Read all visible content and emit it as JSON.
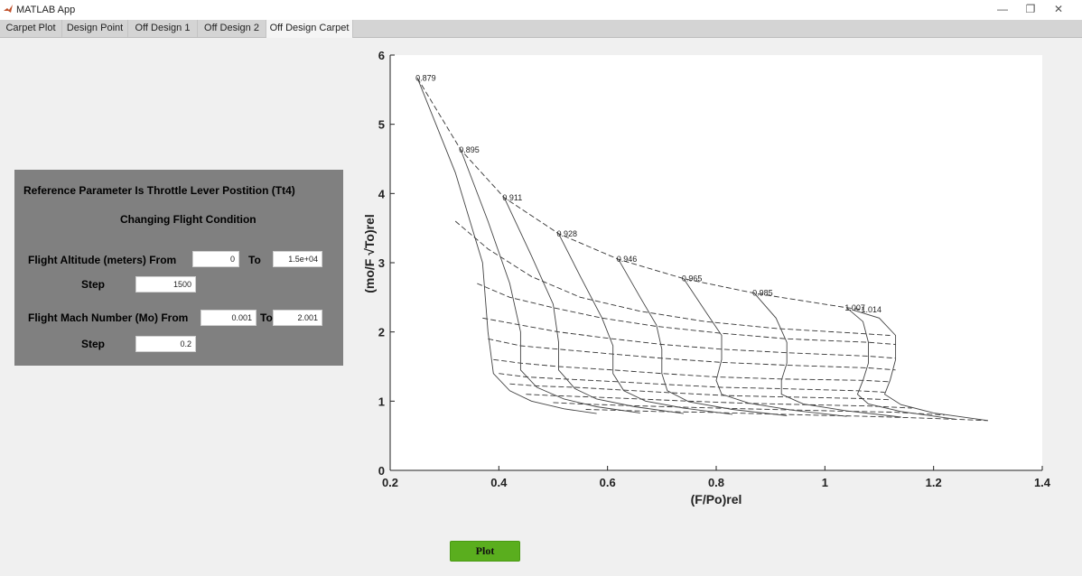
{
  "window": {
    "title": "MATLAB App",
    "minimize": "—",
    "restore": "❐",
    "close": "✕"
  },
  "tabs": [
    "Carpet Plot",
    "Design Point",
    "Off Design 1",
    "Off Design 2",
    "Off Design Carpet"
  ],
  "active_tab": 4,
  "panel": {
    "heading": "Reference Parameter Is Throttle Lever Postition (Tt4)",
    "subheading": "Changing Flight Condition",
    "altitude_label": "Flight Altitude (meters) From",
    "altitude_from": "0",
    "to_label": "To",
    "altitude_to": "1.5e+04",
    "step_label": "Step",
    "altitude_step": "1500",
    "mach_label": "Flight Mach Number (Mo) From",
    "mach_from": "0.001",
    "mach_to": "2.001",
    "mach_step": "0.2"
  },
  "plot_button": "Plot",
  "chart_data": {
    "type": "line",
    "xlabel": "(F/Po)rel",
    "ylabel": "(mo/F √To)rel",
    "xlim": [
      0.2,
      1.4
    ],
    "ylim": [
      0,
      6
    ],
    "xticks": [
      "0.2",
      "0.4",
      "0.6",
      "0.8",
      "1",
      "1.2",
      "1.4"
    ],
    "yticks": [
      "0",
      "1",
      "2",
      "3",
      "4",
      "5",
      "6"
    ],
    "grid": false,
    "legend": "none",
    "point_labels": [
      "0.879",
      "0.895",
      "0.911",
      "0.928",
      "0.946",
      "0.965",
      "0.985",
      "1.007",
      "1.014"
    ],
    "solid_lines": [
      [
        [
          0.25,
          5.67
        ],
        [
          0.32,
          4.3
        ],
        [
          0.37,
          3.0
        ],
        [
          0.38,
          2.0
        ],
        [
          0.39,
          1.4
        ],
        [
          0.42,
          1.15
        ],
        [
          0.46,
          1.0
        ],
        [
          0.52,
          0.89
        ],
        [
          0.58,
          0.82
        ]
      ],
      [
        [
          0.33,
          4.63
        ],
        [
          0.38,
          3.6
        ],
        [
          0.42,
          2.7
        ],
        [
          0.44,
          2.0
        ],
        [
          0.44,
          1.45
        ],
        [
          0.47,
          1.2
        ],
        [
          0.52,
          1.03
        ],
        [
          0.58,
          0.92
        ],
        [
          0.66,
          0.83
        ]
      ],
      [
        [
          0.41,
          3.94
        ],
        [
          0.46,
          3.1
        ],
        [
          0.5,
          2.4
        ],
        [
          0.51,
          1.85
        ],
        [
          0.51,
          1.45
        ],
        [
          0.54,
          1.18
        ],
        [
          0.58,
          1.03
        ],
        [
          0.65,
          0.92
        ],
        [
          0.74,
          0.82
        ]
      ],
      [
        [
          0.51,
          3.42
        ],
        [
          0.55,
          2.8
        ],
        [
          0.59,
          2.2
        ],
        [
          0.61,
          1.8
        ],
        [
          0.61,
          1.4
        ],
        [
          0.63,
          1.15
        ],
        [
          0.67,
          1.0
        ],
        [
          0.74,
          0.9
        ],
        [
          0.83,
          0.81
        ]
      ],
      [
        [
          0.62,
          3.05
        ],
        [
          0.66,
          2.5
        ],
        [
          0.69,
          2.1
        ],
        [
          0.7,
          1.75
        ],
        [
          0.7,
          1.4
        ],
        [
          0.71,
          1.15
        ],
        [
          0.75,
          0.99
        ],
        [
          0.83,
          0.88
        ],
        [
          0.93,
          0.79
        ]
      ],
      [
        [
          0.74,
          2.77
        ],
        [
          0.78,
          2.3
        ],
        [
          0.81,
          1.95
        ],
        [
          0.81,
          1.6
        ],
        [
          0.8,
          1.3
        ],
        [
          0.81,
          1.1
        ],
        [
          0.86,
          0.97
        ],
        [
          0.94,
          0.87
        ],
        [
          1.04,
          0.78
        ]
      ],
      [
        [
          0.87,
          2.56
        ],
        [
          0.91,
          2.2
        ],
        [
          0.93,
          1.85
        ],
        [
          0.93,
          1.55
        ],
        [
          0.92,
          1.3
        ],
        [
          0.92,
          1.1
        ],
        [
          0.96,
          0.96
        ],
        [
          1.04,
          0.86
        ],
        [
          1.14,
          0.77
        ]
      ],
      [
        [
          1.04,
          2.35
        ],
        [
          1.07,
          2.15
        ],
        [
          1.08,
          1.85
        ],
        [
          1.08,
          1.55
        ],
        [
          1.07,
          1.3
        ],
        [
          1.06,
          1.1
        ],
        [
          1.08,
          0.96
        ],
        [
          1.14,
          0.85
        ],
        [
          1.24,
          0.74
        ]
      ],
      [
        [
          1.05,
          2.32
        ],
        [
          1.1,
          2.2
        ],
        [
          1.13,
          1.95
        ],
        [
          1.13,
          1.6
        ],
        [
          1.12,
          1.3
        ],
        [
          1.11,
          1.1
        ],
        [
          1.14,
          0.95
        ],
        [
          1.2,
          0.83
        ],
        [
          1.3,
          0.72
        ]
      ]
    ],
    "dashed_lines": [
      [
        [
          0.25,
          5.67
        ],
        [
          0.33,
          4.63
        ],
        [
          0.41,
          3.94
        ],
        [
          0.51,
          3.42
        ],
        [
          0.62,
          3.05
        ],
        [
          0.74,
          2.77
        ],
        [
          0.87,
          2.56
        ],
        [
          1.04,
          2.35
        ],
        [
          1.07,
          2.32
        ]
      ],
      [
        [
          0.32,
          3.6
        ],
        [
          0.38,
          3.2
        ],
        [
          0.46,
          2.8
        ],
        [
          0.55,
          2.5
        ],
        [
          0.66,
          2.3
        ],
        [
          0.78,
          2.15
        ],
        [
          0.91,
          2.05
        ],
        [
          1.06,
          1.98
        ],
        [
          1.12,
          1.95
        ]
      ],
      [
        [
          0.36,
          2.7
        ],
        [
          0.42,
          2.5
        ],
        [
          0.5,
          2.35
        ],
        [
          0.59,
          2.2
        ],
        [
          0.69,
          2.08
        ],
        [
          0.81,
          1.98
        ],
        [
          0.93,
          1.9
        ],
        [
          1.08,
          1.85
        ],
        [
          1.13,
          1.82
        ]
      ],
      [
        [
          0.37,
          2.2
        ],
        [
          0.44,
          2.1
        ],
        [
          0.51,
          2.0
        ],
        [
          0.61,
          1.9
        ],
        [
          0.7,
          1.82
        ],
        [
          0.81,
          1.75
        ],
        [
          0.93,
          1.7
        ],
        [
          1.08,
          1.65
        ],
        [
          1.13,
          1.62
        ]
      ],
      [
        [
          0.38,
          1.9
        ],
        [
          0.44,
          1.8
        ],
        [
          0.51,
          1.75
        ],
        [
          0.61,
          1.68
        ],
        [
          0.7,
          1.62
        ],
        [
          0.81,
          1.56
        ],
        [
          0.93,
          1.52
        ],
        [
          1.08,
          1.48
        ],
        [
          1.13,
          1.45
        ]
      ],
      [
        [
          0.39,
          1.6
        ],
        [
          0.44,
          1.55
        ],
        [
          0.51,
          1.5
        ],
        [
          0.61,
          1.45
        ],
        [
          0.7,
          1.4
        ],
        [
          0.8,
          1.35
        ],
        [
          0.92,
          1.32
        ],
        [
          1.07,
          1.3
        ],
        [
          1.12,
          1.28
        ]
      ],
      [
        [
          0.4,
          1.4
        ],
        [
          0.45,
          1.35
        ],
        [
          0.52,
          1.32
        ],
        [
          0.62,
          1.28
        ],
        [
          0.71,
          1.24
        ],
        [
          0.81,
          1.2
        ],
        [
          0.92,
          1.18
        ],
        [
          1.06,
          1.15
        ],
        [
          1.11,
          1.13
        ]
      ],
      [
        [
          0.42,
          1.25
        ],
        [
          0.47,
          1.22
        ],
        [
          0.54,
          1.2
        ],
        [
          0.63,
          1.16
        ],
        [
          0.72,
          1.12
        ],
        [
          0.82,
          1.08
        ],
        [
          0.93,
          1.06
        ],
        [
          1.06,
          1.04
        ],
        [
          1.12,
          1.02
        ]
      ],
      [
        [
          0.45,
          1.1
        ],
        [
          0.5,
          1.08
        ],
        [
          0.57,
          1.06
        ],
        [
          0.66,
          1.03
        ],
        [
          0.75,
          1.0
        ],
        [
          0.85,
          0.97
        ],
        [
          0.96,
          0.95
        ],
        [
          1.08,
          0.93
        ],
        [
          1.16,
          0.9
        ]
      ],
      [
        [
          0.5,
          0.98
        ],
        [
          0.55,
          0.96
        ],
        [
          0.62,
          0.94
        ],
        [
          0.71,
          0.92
        ],
        [
          0.8,
          0.9
        ],
        [
          0.9,
          0.88
        ],
        [
          1.01,
          0.86
        ],
        [
          1.13,
          0.84
        ],
        [
          1.22,
          0.8
        ]
      ],
      [
        [
          0.56,
          0.88
        ],
        [
          0.61,
          0.87
        ],
        [
          0.69,
          0.85
        ],
        [
          0.78,
          0.84
        ],
        [
          0.87,
          0.82
        ],
        [
          0.97,
          0.8
        ],
        [
          1.08,
          0.78
        ],
        [
          1.2,
          0.75
        ],
        [
          1.3,
          0.72
        ]
      ]
    ]
  }
}
